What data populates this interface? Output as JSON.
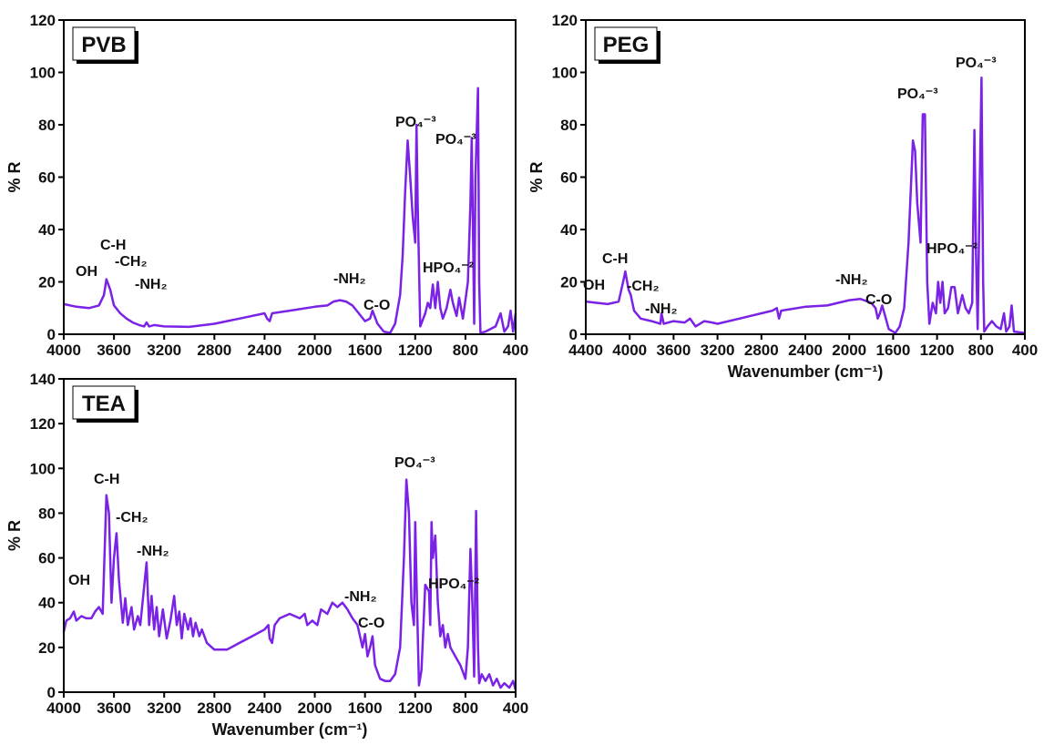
{
  "chart_data": [
    {
      "type": "line",
      "label": "PVB",
      "label_color": "#000000",
      "ylabel": "% R",
      "color": "#7a22e6",
      "annotations": [
        "OH",
        "C-H",
        "-CH₂",
        "-NH₂",
        "-NH₂",
        "C-O",
        "PO₄⁻³",
        "PO₄⁻³",
        "HPO₄⁻²"
      ],
      "xlim": [
        4000,
        400
      ],
      "xticks": [
        4000,
        3600,
        3200,
        2800,
        2400,
        2000,
        1600,
        1200,
        800,
        400
      ],
      "ylim": [
        0,
        120
      ],
      "yticks": [
        0,
        20,
        40,
        60,
        80,
        100,
        120
      ],
      "x": [
        4000,
        3900,
        3800,
        3720,
        3680,
        3660,
        3630,
        3600,
        3550,
        3500,
        3450,
        3400,
        3360,
        3340,
        3320,
        3280,
        3200,
        3000,
        2800,
        2600,
        2400,
        2380,
        2360,
        2340,
        2200,
        2000,
        1900,
        1850,
        1800,
        1750,
        1700,
        1650,
        1600,
        1560,
        1540,
        1500,
        1450,
        1400,
        1360,
        1320,
        1300,
        1280,
        1260,
        1240,
        1220,
        1200,
        1190,
        1180,
        1160,
        1120,
        1100,
        1080,
        1060,
        1040,
        1020,
        1000,
        980,
        950,
        920,
        900,
        870,
        850,
        820,
        800,
        780,
        760,
        750,
        740,
        730,
        720,
        700,
        690,
        680,
        640,
        600,
        560,
        520,
        490,
        460,
        440,
        420,
        400
      ],
      "values": [
        11.5,
        10.5,
        10,
        11,
        15,
        21,
        17,
        11,
        8,
        6,
        4.5,
        3.5,
        3,
        4.5,
        3,
        3.5,
        3,
        2.8,
        4,
        6,
        8,
        6,
        5,
        8,
        9,
        10.5,
        11,
        12.5,
        13,
        12.5,
        11,
        8,
        5,
        6,
        9,
        4,
        1,
        0.5,
        4,
        15,
        30,
        55,
        74,
        60,
        45,
        35,
        80,
        50,
        3,
        8,
        12,
        10,
        19,
        10,
        20,
        10,
        6,
        10,
        17,
        12,
        7,
        14,
        6,
        13,
        20,
        50,
        75,
        40,
        4,
        60,
        94,
        20,
        0.5,
        1,
        2,
        3,
        8,
        1,
        3,
        9,
        1,
        8
      ]
    },
    {
      "type": "line",
      "label": "PEG",
      "label_color": "#5b9bea",
      "ylabel": "% R",
      "xlabel": "Wavenumber (cm⁻¹)",
      "color": "#7a22e6",
      "annotations": [
        "OH",
        "C-H",
        "-CH₂",
        "-NH₂",
        "-NH₂",
        "C-O",
        "PO₄⁻³",
        "PO₄⁻³",
        "HPO₄⁻²"
      ],
      "xlim": [
        4400,
        400
      ],
      "xticks": [
        4400,
        4000,
        3600,
        3200,
        2800,
        2400,
        2000,
        1600,
        1200,
        800,
        400
      ],
      "ylim": [
        0,
        120
      ],
      "yticks": [
        0,
        20,
        40,
        60,
        80,
        100,
        120
      ],
      "x": [
        4400,
        4300,
        4200,
        4100,
        4060,
        4040,
        4010,
        3990,
        3960,
        3900,
        3800,
        3760,
        3720,
        3710,
        3690,
        3600,
        3500,
        3450,
        3400,
        3320,
        3250,
        3200,
        3000,
        2800,
        2700,
        2660,
        2640,
        2620,
        2400,
        2200,
        2100,
        2000,
        1900,
        1800,
        1760,
        1740,
        1720,
        1700,
        1680,
        1640,
        1580,
        1540,
        1500,
        1460,
        1420,
        1400,
        1380,
        1350,
        1330,
        1310,
        1290,
        1270,
        1240,
        1210,
        1190,
        1170,
        1150,
        1130,
        1100,
        1070,
        1040,
        1010,
        970,
        940,
        910,
        880,
        860,
        845,
        830,
        810,
        795,
        780,
        770,
        740,
        700,
        660,
        620,
        590,
        570,
        540,
        520,
        500,
        400
      ],
      "values": [
        12.5,
        12,
        11.5,
        12.5,
        20,
        24,
        17,
        15,
        9,
        6,
        5,
        4.5,
        4,
        8,
        4,
        5,
        4.5,
        6,
        3,
        5,
        4.5,
        4,
        6,
        8,
        9,
        10,
        6,
        9,
        10.5,
        11,
        12,
        13,
        13.5,
        12,
        10,
        6,
        8,
        11,
        8,
        2,
        0.5,
        3,
        10,
        35,
        74,
        70,
        50,
        35,
        84,
        84,
        20,
        4,
        12,
        8,
        20,
        12,
        20,
        8,
        10,
        18,
        18,
        8,
        15,
        10,
        8,
        12,
        78,
        30,
        2,
        60,
        98,
        20,
        1,
        3,
        5,
        3,
        2,
        8,
        1,
        3,
        11,
        1,
        0.5
      ]
    },
    {
      "type": "line",
      "label": "TEA",
      "label_color": "#e07b2a",
      "ylabel": "% R",
      "xlabel": "Wavenumber (cm⁻¹)",
      "color": "#7a22e6",
      "annotations": [
        "OH",
        "C-H",
        "-CH₂",
        "-NH₂",
        "-NH₂",
        "C-O",
        "PO₄⁻³",
        "HPO₄⁻²"
      ],
      "xlim": [
        4000,
        400
      ],
      "xticks": [
        4000,
        3600,
        3200,
        2800,
        2400,
        2000,
        1600,
        1200,
        800,
        400
      ],
      "ylim": [
        0,
        140
      ],
      "yticks": [
        0,
        20,
        40,
        60,
        80,
        100,
        120,
        140
      ],
      "x": [
        4000,
        3980,
        3950,
        3920,
        3900,
        3860,
        3820,
        3780,
        3750,
        3720,
        3690,
        3660,
        3640,
        3620,
        3600,
        3580,
        3560,
        3530,
        3510,
        3490,
        3460,
        3440,
        3410,
        3390,
        3340,
        3320,
        3300,
        3280,
        3260,
        3240,
        3210,
        3180,
        3150,
        3120,
        3100,
        3080,
        3060,
        3040,
        3010,
        2990,
        2970,
        2950,
        2920,
        2900,
        2860,
        2800,
        2700,
        2600,
        2500,
        2400,
        2370,
        2360,
        2340,
        2320,
        2280,
        2200,
        2120,
        2080,
        2060,
        2020,
        1980,
        1950,
        1900,
        1860,
        1820,
        1780,
        1740,
        1700,
        1660,
        1640,
        1620,
        1600,
        1580,
        1560,
        1540,
        1520,
        1480,
        1440,
        1400,
        1360,
        1320,
        1290,
        1270,
        1250,
        1230,
        1210,
        1200,
        1190,
        1170,
        1150,
        1120,
        1090,
        1080,
        1070,
        1060,
        1040,
        1020,
        1000,
        980,
        960,
        940,
        920,
        900,
        870,
        840,
        800,
        780,
        760,
        745,
        730,
        715,
        700,
        690,
        670,
        640,
        610,
        580,
        550,
        520,
        490,
        450,
        420,
        400
      ],
      "values": [
        27,
        32,
        33,
        36,
        32,
        34,
        33,
        33,
        36,
        38,
        35,
        88,
        80,
        40,
        60,
        71,
        50,
        31,
        42,
        30,
        38,
        28,
        34,
        30,
        58,
        30,
        43,
        28,
        38,
        25,
        37,
        24,
        32,
        43,
        30,
        36,
        24,
        35,
        28,
        33,
        25,
        31,
        25,
        28,
        22,
        19,
        19,
        22,
        25,
        28,
        30,
        24,
        22,
        30,
        33,
        35,
        33,
        35,
        30,
        32,
        30,
        37,
        35,
        40,
        38,
        40,
        37,
        33,
        30,
        25,
        20,
        26,
        16,
        20,
        25,
        12,
        6,
        5,
        5,
        8,
        20,
        60,
        95,
        80,
        40,
        30,
        76,
        50,
        3,
        10,
        48,
        45,
        30,
        76,
        60,
        70,
        40,
        25,
        30,
        20,
        26,
        20,
        18,
        15,
        12,
        6,
        20,
        64,
        40,
        7,
        81,
        20,
        4,
        8,
        5,
        8,
        3,
        6,
        2,
        4,
        2,
        5,
        1
      ]
    }
  ]
}
